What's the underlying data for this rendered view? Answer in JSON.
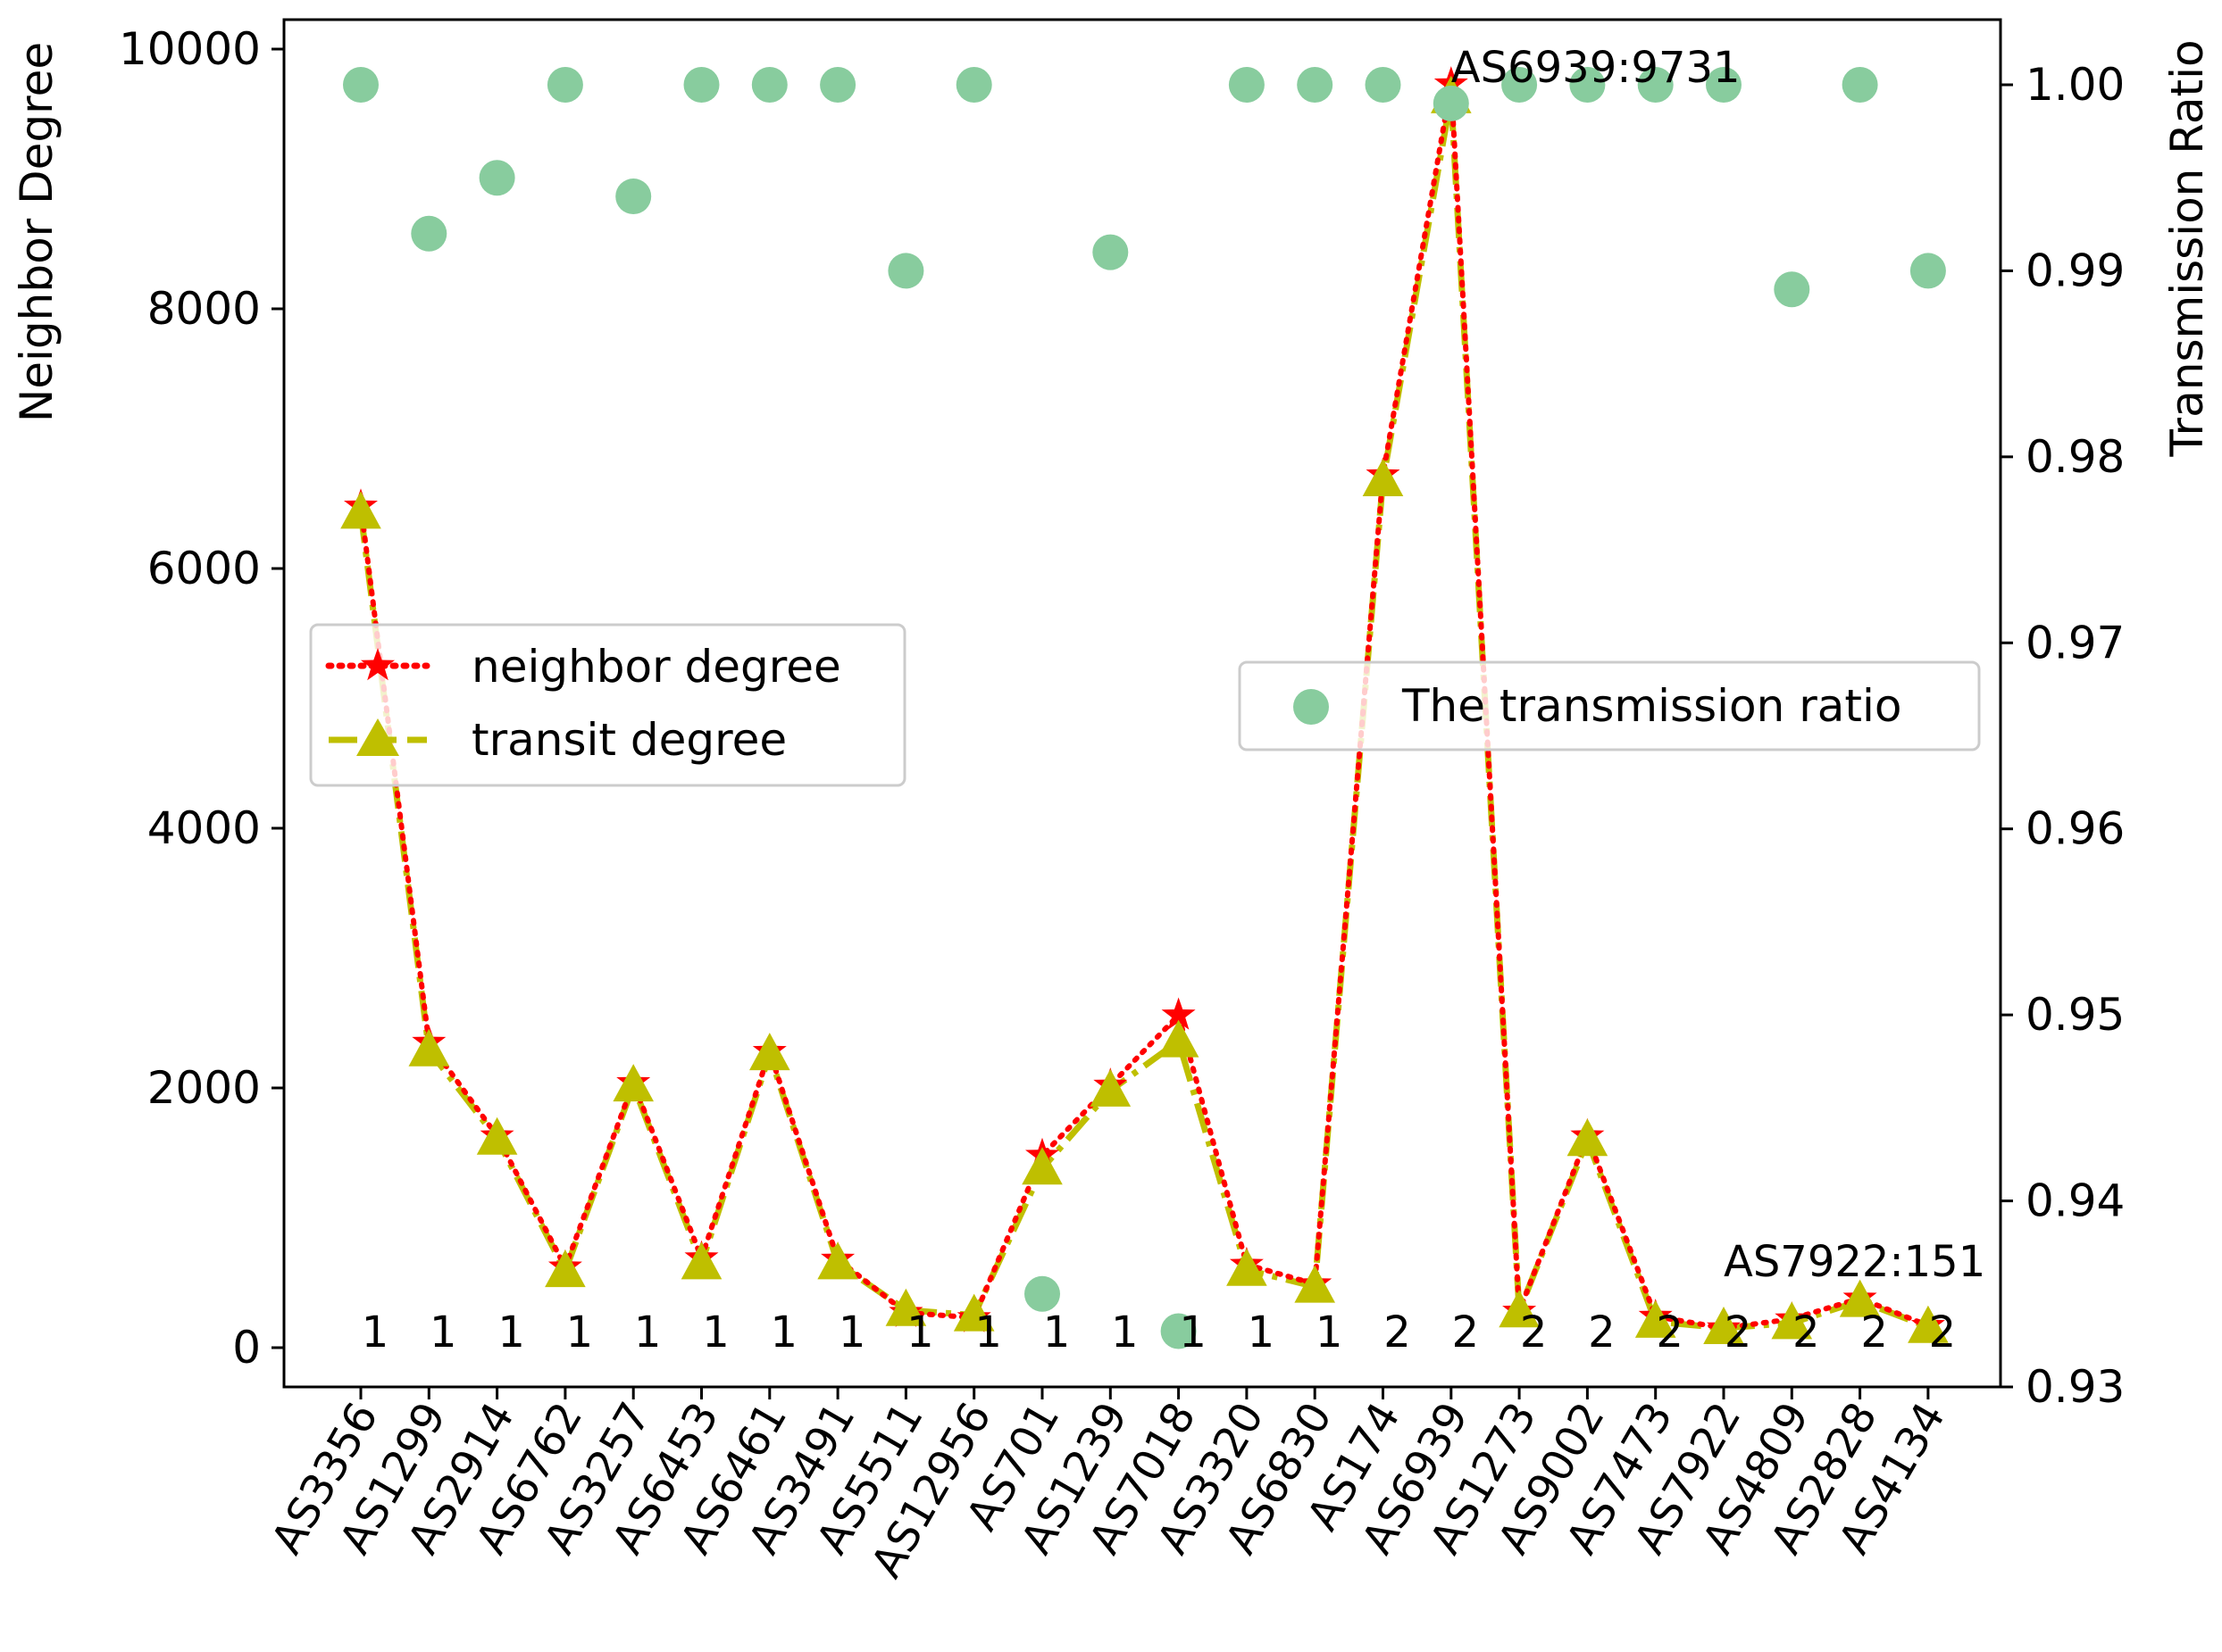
{
  "chart_data": {
    "type": "line",
    "categories": [
      "AS3356",
      "AS1299",
      "AS2914",
      "AS6762",
      "AS3257",
      "AS6453",
      "AS6461",
      "AS3491",
      "AS5511",
      "AS12956",
      "AS701",
      "AS1239",
      "AS7018",
      "AS3320",
      "AS6830",
      "AS174",
      "AS6939",
      "AS1273",
      "AS9002",
      "AS7473",
      "AS7922",
      "AS4809",
      "AS2828",
      "AS4134"
    ],
    "category_labels": [
      "1",
      "1",
      "1",
      "1",
      "1",
      "1",
      "1",
      "1",
      "1",
      "1",
      "1",
      "1",
      "1",
      "1",
      "1",
      "2",
      "2",
      "2",
      "2",
      "2",
      "2",
      "2",
      "2",
      "2"
    ],
    "series": [
      {
        "name": "neighbor degree",
        "axis": "left",
        "color": "#ff0000",
        "marker": "star",
        "line_style": "dotted",
        "values": [
          6480,
          2350,
          1630,
          620,
          2040,
          690,
          2280,
          680,
          270,
          230,
          1480,
          2020,
          2560,
          640,
          490,
          6720,
          9731,
          280,
          1630,
          240,
          151,
          220,
          380,
          170
        ]
      },
      {
        "name": "transit degree",
        "axis": "left",
        "color": "#bfbf00",
        "marker": "triangle",
        "line_style": "dashdot",
        "values": [
          6430,
          2290,
          1610,
          590,
          2020,
          650,
          2260,
          650,
          290,
          250,
          1380,
          1980,
          2360,
          600,
          470,
          6680,
          9630,
          280,
          1600,
          200,
          151,
          190,
          360,
          160
        ]
      },
      {
        "name": "The transmission ratio",
        "axis": "right",
        "color": "#88cc9e",
        "marker": "circle",
        "values": [
          1.0,
          0.992,
          0.995,
          1.0,
          0.994,
          1.0,
          1.0,
          1.0,
          0.99,
          1.0,
          0.935,
          0.991,
          0.933,
          1.0,
          1.0,
          1.0,
          0.999,
          1.0,
          1.0,
          1.0,
          1.0,
          0.989,
          1.0,
          0.99
        ]
      }
    ],
    "ylabel": "Neighbor Degree",
    "ylim": [
      0,
      10000
    ],
    "yticks": [
      0,
      2000,
      4000,
      6000,
      8000,
      10000
    ],
    "ytick_labels": [
      "0",
      "2000",
      "4000",
      "6000",
      "8000",
      "10000"
    ],
    "y2label": "Transmission Ratio",
    "y2lim": [
      0.93,
      1.0
    ],
    "y2ticks": [
      0.93,
      0.94,
      0.95,
      0.96,
      0.97,
      0.98,
      0.99,
      1.0
    ],
    "y2tick_labels": [
      "0.93",
      "0.94",
      "0.95",
      "0.96",
      "0.97",
      "0.98",
      "0.99",
      "1.00"
    ],
    "annotations": [
      {
        "text": "AS6939:9731",
        "category": "AS6939",
        "value": 9731
      },
      {
        "text": "AS7922:151",
        "category": "AS7922",
        "value": 151
      }
    ],
    "legend_left": {
      "placement": "center-left",
      "entries": [
        "neighbor degree",
        "transit degree"
      ]
    },
    "legend_right": {
      "placement": "center-right",
      "entries": [
        "The transmission ratio"
      ]
    },
    "grid": false
  }
}
